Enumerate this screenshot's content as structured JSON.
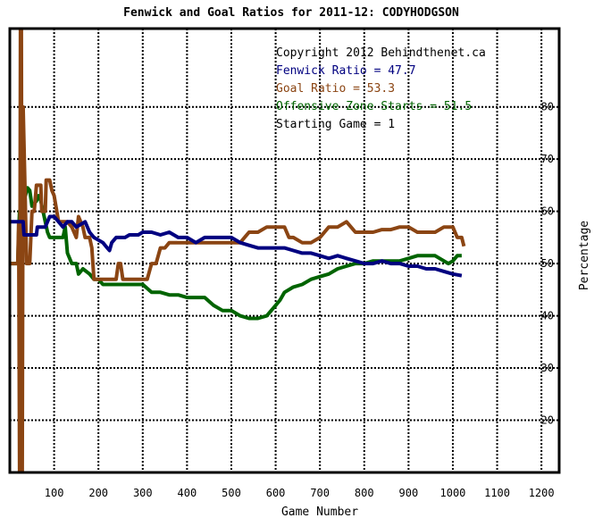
{
  "chart_data": {
    "type": "line",
    "title": "Fenwick and Goal Ratios for 2011-12: CODYHODGSON",
    "xlabel": "Game Number",
    "ylabel": "Percentage",
    "xlim": [
      0,
      1240
    ],
    "ylim": [
      10,
      95
    ],
    "x_ticks": [
      "100",
      "200",
      "300",
      "400",
      "500",
      "600",
      "700",
      "800",
      "900",
      "1000",
      "1100",
      "1200"
    ],
    "y_ticks": [
      "20",
      "30",
      "40",
      "50",
      "60",
      "70",
      "80"
    ],
    "grid": true,
    "legend_position": "top-right",
    "annotations": {
      "copyright": "Copyright 2012 Behindthenet.ca",
      "starting_game": "Starting Game = 1"
    },
    "series": [
      {
        "name": "Fenwick Ratio = 47.7",
        "color": "#000080",
        "points": [
          [
            0,
            58
          ],
          [
            30,
            58
          ],
          [
            32,
            55.5
          ],
          [
            60,
            55.5
          ],
          [
            62,
            57
          ],
          [
            80,
            57
          ],
          [
            90,
            59
          ],
          [
            100,
            59
          ],
          [
            110,
            58
          ],
          [
            120,
            57
          ],
          [
            130,
            58
          ],
          [
            140,
            58
          ],
          [
            150,
            57
          ],
          [
            170,
            58
          ],
          [
            180,
            56
          ],
          [
            190,
            55
          ],
          [
            210,
            54
          ],
          [
            220,
            53
          ],
          [
            225,
            52.5
          ],
          [
            230,
            54
          ],
          [
            240,
            55
          ],
          [
            260,
            55
          ],
          [
            270,
            55.5
          ],
          [
            290,
            55.5
          ],
          [
            300,
            56
          ],
          [
            320,
            56
          ],
          [
            340,
            55.5
          ],
          [
            360,
            56
          ],
          [
            380,
            55
          ],
          [
            400,
            55
          ],
          [
            420,
            54
          ],
          [
            440,
            55
          ],
          [
            460,
            55
          ],
          [
            480,
            55
          ],
          [
            500,
            55
          ],
          [
            520,
            54
          ],
          [
            540,
            53.5
          ],
          [
            560,
            53
          ],
          [
            600,
            53
          ],
          [
            620,
            53
          ],
          [
            640,
            52.5
          ],
          [
            660,
            52
          ],
          [
            680,
            52
          ],
          [
            700,
            51.5
          ],
          [
            720,
            51
          ],
          [
            740,
            51.5
          ],
          [
            760,
            51
          ],
          [
            780,
            50.5
          ],
          [
            800,
            50
          ],
          [
            820,
            50
          ],
          [
            840,
            50.5
          ],
          [
            860,
            50
          ],
          [
            880,
            50
          ],
          [
            900,
            49.5
          ],
          [
            920,
            49.5
          ],
          [
            940,
            49
          ],
          [
            960,
            49
          ],
          [
            980,
            48.5
          ],
          [
            1000,
            48
          ],
          [
            1020,
            47.7
          ]
        ]
      },
      {
        "name": "Goal Ratio = 53.3",
        "color": "#8B4513",
        "points": [
          [
            0,
            50
          ],
          [
            18,
            50
          ],
          [
            20,
            58
          ],
          [
            22,
            10
          ],
          [
            24,
            96
          ],
          [
            26,
            96
          ],
          [
            28,
            10
          ],
          [
            30,
            80
          ],
          [
            34,
            65
          ],
          [
            38,
            50
          ],
          [
            45,
            50
          ],
          [
            50,
            60
          ],
          [
            55,
            60
          ],
          [
            60,
            65
          ],
          [
            70,
            65
          ],
          [
            72,
            60
          ],
          [
            80,
            60
          ],
          [
            82,
            66
          ],
          [
            90,
            66
          ],
          [
            95,
            64
          ],
          [
            100,
            63
          ],
          [
            110,
            58
          ],
          [
            120,
            58
          ],
          [
            130,
            58
          ],
          [
            140,
            57
          ],
          [
            150,
            55
          ],
          [
            155,
            59
          ],
          [
            165,
            57
          ],
          [
            170,
            55
          ],
          [
            180,
            55
          ],
          [
            185,
            53
          ],
          [
            190,
            47
          ],
          [
            200,
            47
          ],
          [
            220,
            47
          ],
          [
            240,
            47
          ],
          [
            245,
            50
          ],
          [
            250,
            50
          ],
          [
            255,
            47
          ],
          [
            260,
            47
          ],
          [
            280,
            47
          ],
          [
            300,
            47
          ],
          [
            310,
            47
          ],
          [
            320,
            50
          ],
          [
            330,
            50
          ],
          [
            340,
            53
          ],
          [
            350,
            53
          ],
          [
            360,
            54
          ],
          [
            380,
            54
          ],
          [
            400,
            54
          ],
          [
            420,
            54
          ],
          [
            440,
            54
          ],
          [
            460,
            54
          ],
          [
            480,
            54
          ],
          [
            500,
            54
          ],
          [
            520,
            54
          ],
          [
            540,
            56
          ],
          [
            560,
            56
          ],
          [
            580,
            57
          ],
          [
            600,
            57
          ],
          [
            620,
            57
          ],
          [
            630,
            55
          ],
          [
            640,
            55
          ],
          [
            660,
            54
          ],
          [
            680,
            54
          ],
          [
            700,
            55
          ],
          [
            720,
            57
          ],
          [
            740,
            57
          ],
          [
            760,
            58
          ],
          [
            780,
            56
          ],
          [
            800,
            56
          ],
          [
            820,
            56
          ],
          [
            840,
            56.5
          ],
          [
            860,
            56.5
          ],
          [
            880,
            57
          ],
          [
            900,
            57
          ],
          [
            920,
            56
          ],
          [
            940,
            56
          ],
          [
            960,
            56
          ],
          [
            980,
            57
          ],
          [
            1000,
            57
          ],
          [
            1010,
            55
          ],
          [
            1020,
            55
          ],
          [
            1025,
            53.3
          ]
        ]
      },
      {
        "name": "Offensive Zone Starts = 51.5",
        "color": "#006400",
        "points": [
          [
            0,
            50
          ],
          [
            18,
            50
          ],
          [
            20,
            56
          ],
          [
            22,
            60
          ],
          [
            25,
            58
          ],
          [
            30,
            62
          ],
          [
            35,
            63
          ],
          [
            40,
            64.5
          ],
          [
            45,
            64
          ],
          [
            50,
            61
          ],
          [
            60,
            62
          ],
          [
            65,
            63
          ],
          [
            70,
            62
          ],
          [
            80,
            58
          ],
          [
            85,
            56
          ],
          [
            90,
            55
          ],
          [
            100,
            55
          ],
          [
            110,
            55
          ],
          [
            120,
            55
          ],
          [
            125,
            57
          ],
          [
            130,
            52
          ],
          [
            140,
            50
          ],
          [
            150,
            50
          ],
          [
            155,
            48
          ],
          [
            165,
            49
          ],
          [
            180,
            48
          ],
          [
            190,
            47
          ],
          [
            200,
            47
          ],
          [
            210,
            46
          ],
          [
            220,
            46
          ],
          [
            240,
            46
          ],
          [
            260,
            46
          ],
          [
            280,
            46
          ],
          [
            300,
            46
          ],
          [
            320,
            44.5
          ],
          [
            340,
            44.5
          ],
          [
            360,
            44
          ],
          [
            380,
            44
          ],
          [
            400,
            43.5
          ],
          [
            420,
            43.5
          ],
          [
            440,
            43.5
          ],
          [
            460,
            42
          ],
          [
            480,
            41
          ],
          [
            500,
            41
          ],
          [
            520,
            40
          ],
          [
            540,
            39.5
          ],
          [
            560,
            39.5
          ],
          [
            580,
            40
          ],
          [
            600,
            42
          ],
          [
            610,
            43
          ],
          [
            620,
            44.5
          ],
          [
            640,
            45.5
          ],
          [
            660,
            46
          ],
          [
            680,
            47
          ],
          [
            700,
            47.5
          ],
          [
            720,
            48
          ],
          [
            740,
            49
          ],
          [
            760,
            49.5
          ],
          [
            780,
            50
          ],
          [
            800,
            50
          ],
          [
            820,
            50.5
          ],
          [
            840,
            50.5
          ],
          [
            860,
            50.5
          ],
          [
            880,
            50.5
          ],
          [
            900,
            51
          ],
          [
            920,
            51.5
          ],
          [
            940,
            51.5
          ],
          [
            960,
            51.5
          ],
          [
            980,
            50.5
          ],
          [
            990,
            50
          ],
          [
            1000,
            50.5
          ],
          [
            1010,
            51.5
          ],
          [
            1020,
            51.5
          ]
        ]
      }
    ]
  }
}
